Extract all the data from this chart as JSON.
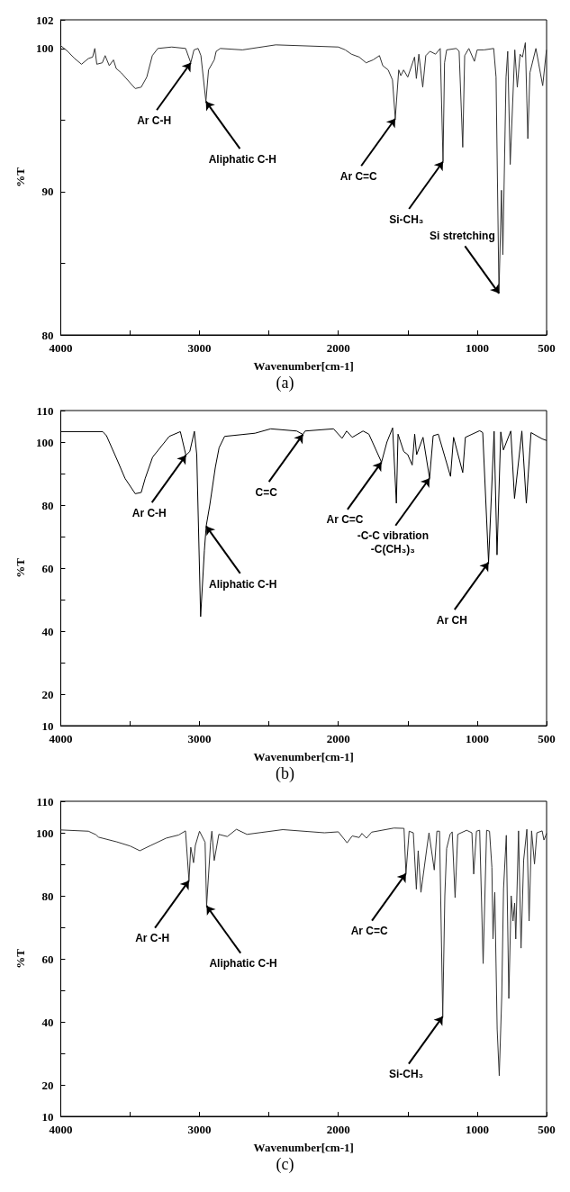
{
  "chart_data": [
    {
      "type": "line",
      "xlabel": "Wavenumber[cm-1]",
      "ylabel": "%T",
      "color": "#333333",
      "xlim": [
        4000,
        500
      ],
      "ylim": [
        80,
        102
      ],
      "xticks": [
        4000,
        {
          "value": 3500,
          "label": null
        },
        3000,
        {
          "value": 2500,
          "label": null
        },
        2000,
        {
          "value": 1500,
          "label": null
        },
        1000,
        500
      ],
      "yticks": [
        80,
        {
          "value": 85,
          "label": null
        },
        90,
        {
          "value": 95,
          "label": null
        },
        100,
        102
      ],
      "x": [
        4000,
        3950,
        3900,
        3850,
        3800,
        3770,
        3754,
        3740,
        3700,
        3680,
        3650,
        3620,
        3600,
        3564,
        3500,
        3463,
        3420,
        3380,
        3340,
        3300,
        3200,
        3100,
        3063,
        3040,
        3010,
        2990,
        2954,
        2935,
        2894,
        2880,
        2850,
        2691,
        2451,
        2000,
        1950,
        1906,
        1850,
        1800,
        1750,
        1704,
        1680,
        1641,
        1610,
        1590,
        1565,
        1550,
        1530,
        1500,
        1451,
        1438,
        1420,
        1392,
        1370,
        1340,
        1300,
        1266,
        1246,
        1235,
        1220,
        1150,
        1130,
        1104,
        1090,
        1060,
        1020,
        1000,
        950,
        881,
        864,
        843,
        825,
        815,
        792,
        780,
        762,
        729,
        711,
        691,
        674,
        653,
        635,
        620,
        577,
        528,
        501
      ],
      "values": [
        100.2,
        99.8,
        99.3,
        98.9,
        99.3,
        99.4,
        100,
        98.9,
        99.0,
        99.5,
        98.8,
        99.2,
        98.6,
        98.3,
        97.6,
        97.2,
        97.3,
        98.0,
        99.5,
        100.0,
        100.1,
        100.0,
        99.0,
        99.9,
        100.0,
        99.5,
        96.3,
        98.5,
        99.2,
        99.8,
        100.0,
        99.9,
        100.25,
        100.1,
        99.9,
        99.6,
        99.4,
        99.0,
        99.2,
        99.5,
        98.8,
        98.5,
        97.8,
        95.1,
        98.5,
        98.1,
        98.5,
        98.0,
        99.4,
        97.9,
        99.6,
        97.3,
        99.5,
        99.8,
        99.6,
        100.0,
        92.1,
        99.0,
        99.9,
        100.0,
        99.8,
        93.1,
        99.5,
        100.0,
        99.1,
        99.9,
        99.9,
        100.0,
        98.0,
        82.9,
        90.1,
        85.6,
        98.0,
        99.8,
        91.9,
        99.9,
        97.3,
        99.6,
        99.4,
        100.4,
        93.7,
        98.3,
        100.0,
        97.4,
        99.9
      ],
      "annotations": [
        {
          "text": "Ar C-H",
          "x": 3063,
          "y": 99.0
        },
        {
          "text": "Aliphatic C-H",
          "x": 2954,
          "y": 96.3
        },
        {
          "text": "Ar C=C",
          "x": 1590,
          "y": 95.1
        },
        {
          "text": "Si-CH₃",
          "x": 1246,
          "y": 92.1
        },
        {
          "text": "Si stretching",
          "x": 843,
          "y": 82.9
        },
        "(a)"
      ]
    },
    {
      "type": "line",
      "xlabel": "Wavenumber[cm-1]",
      "ylabel": "%T",
      "color": "#000000",
      "xlim": [
        4000,
        500
      ],
      "ylim": [
        10,
        110
      ],
      "xticks": [
        4000,
        {
          "value": 3500,
          "label": null
        },
        3000,
        {
          "value": 2500,
          "label": null
        },
        2000,
        {
          "value": 1500,
          "label": null
        },
        1000,
        500
      ],
      "yticks": [
        10,
        20,
        {
          "value": 30,
          "label": null
        },
        40,
        {
          "value": 50,
          "label": null
        },
        60,
        {
          "value": 70,
          "label": null
        },
        80,
        {
          "value": 90,
          "label": null
        },
        100,
        110
      ],
      "x": [
        4000,
        3697,
        3670,
        3590,
        3537,
        3463,
        3420,
        3391,
        3338,
        3218,
        3138,
        3098,
        3070,
        3037,
        3020,
        2992,
        2965,
        2952,
        2926,
        2886,
        2859,
        2819,
        2600,
        2487,
        2300,
        2255,
        2240,
        2035,
        1973,
        1940,
        1900,
        1822,
        1780,
        1689,
        1650,
        1609,
        1582,
        1570,
        1529,
        1500,
        1468,
        1450,
        1436,
        1390,
        1343,
        1317,
        1280,
        1192,
        1170,
        1104,
        1085,
        982,
        960,
        918,
        878,
        857,
        830,
        811,
        758,
        731,
        678,
        646,
        612,
        532,
        500
      ],
      "values": [
        103.3,
        103.3,
        102,
        94,
        88.5,
        83.6,
        84,
        88.5,
        95.2,
        101.8,
        103.3,
        95.8,
        97,
        103.4,
        96,
        44.6,
        65.5,
        73.3,
        80,
        92,
        98.2,
        101.8,
        102.8,
        104.2,
        103.5,
        102.4,
        103.5,
        104.2,
        101.2,
        103.5,
        101.5,
        103.5,
        102.5,
        93.6,
        100,
        104.5,
        80.6,
        102.5,
        97,
        96,
        92.7,
        102.5,
        96,
        101.5,
        88.5,
        102,
        102.5,
        89.1,
        101.5,
        90.3,
        101.5,
        103.6,
        103,
        61.8,
        103.4,
        64.2,
        103.2,
        97.5,
        103.5,
        82.1,
        103.5,
        80.6,
        103,
        101,
        100.5
      ],
      "annotations": [
        {
          "text": "Ar C-H",
          "x": 3098,
          "y": 95.8
        },
        {
          "text": "C=C",
          "x": 2255,
          "y": 102.4
        },
        {
          "text": "Aliphatic C-H",
          "x": 2952,
          "y": 73.3
        },
        {
          "text": "Ar C=C",
          "x": 1689,
          "y": 93.6
        },
        {
          "text": "-C-C vibration\n-C(CH₃)₃",
          "x": 1343,
          "y": 88.5
        },
        {
          "text": "Ar CH",
          "x": 918,
          "y": 61.8
        },
        "(b)"
      ]
    },
    {
      "type": "line",
      "xlabel": "Wavenumber[cm-1]",
      "ylabel": "%T",
      "color": "#333333",
      "xlim": [
        4000,
        500
      ],
      "ylim": [
        10,
        110
      ],
      "xticks": [
        4000,
        {
          "value": 3500,
          "label": null
        },
        3000,
        {
          "value": 2500,
          "label": null
        },
        2000,
        {
          "value": 1500,
          "label": null
        },
        1000,
        500
      ],
      "yticks": [
        10,
        20,
        {
          "value": 30,
          "label": null
        },
        40,
        {
          "value": 50,
          "label": null
        },
        60,
        {
          "value": 70,
          "label": null
        },
        80,
        {
          "value": 90,
          "label": null
        },
        100,
        110
      ],
      "x": [
        4000,
        3800,
        3747,
        3727,
        3595,
        3500,
        3430,
        3350,
        3240,
        3150,
        3101,
        3076,
        3063,
        3043,
        3030,
        3000,
        2960,
        2949,
        2920,
        2911,
        2894,
        2861,
        2800,
        2734,
        2658,
        2400,
        2100,
        2000,
        1937,
        1900,
        1850,
        1830,
        1797,
        1760,
        1600,
        1527,
        1513,
        1490,
        1460,
        1438,
        1425,
        1405,
        1360,
        1347,
        1309,
        1290,
        1271,
        1248,
        1233,
        1220,
        1195,
        1180,
        1159,
        1140,
        1076,
        1038,
        1025,
        1005,
        982,
        957,
        932,
        911,
        894,
        886,
        873,
        856,
        841,
        823,
        810,
        790,
        772,
        755,
        742,
        730,
        722,
        702,
        684,
        665,
        642,
        626,
        608,
        587,
        570,
        532,
        519,
        500
      ],
      "values": [
        100.9,
        100.5,
        99.4,
        98.6,
        97.1,
        95.8,
        94.3,
        96,
        98.3,
        99.3,
        100.6,
        84.8,
        95.4,
        90.5,
        96,
        100.5,
        97,
        76.8,
        97,
        100.5,
        91.2,
        99.5,
        98.8,
        101.1,
        99.5,
        101,
        100,
        100.3,
        96.8,
        99,
        98.5,
        99.8,
        98.3,
        100.2,
        101.5,
        101.4,
        87.1,
        100.5,
        100,
        82.1,
        94.3,
        81.1,
        96,
        100,
        88.2,
        100.5,
        100.5,
        41.7,
        80,
        95,
        99.5,
        100.3,
        79.4,
        99.5,
        100.8,
        100,
        86.9,
        100.5,
        100.8,
        58.5,
        100.8,
        100.5,
        89,
        66.3,
        81.1,
        37.7,
        22.9,
        48,
        82.3,
        99.2,
        47.4,
        80,
        72,
        77.7,
        66.3,
        100.6,
        63.4,
        91.4,
        101.1,
        72,
        100.6,
        90.1,
        100,
        100.6,
        97.7,
        99.8
      ],
      "annotations": [
        {
          "text": "Ar C-H",
          "x": 3076,
          "y": 84.8
        },
        {
          "text": "Aliphatic C-H",
          "x": 2949,
          "y": 76.8
        },
        {
          "text": "Ar C=C",
          "x": 1513,
          "y": 87.1
        },
        {
          "text": "Si-CH₃",
          "x": 1248,
          "y": 41.7
        },
        "(c)"
      ]
    }
  ]
}
